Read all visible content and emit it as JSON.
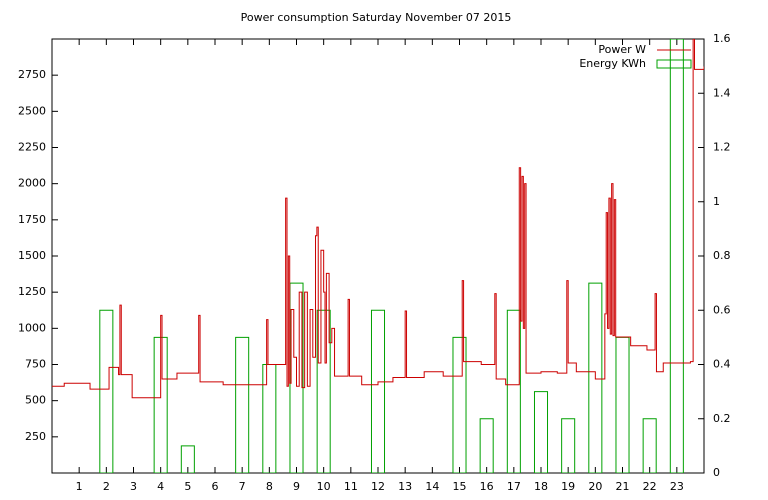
{
  "chart_data": {
    "type": "line",
    "title": "Power consumption Saturday November 07 2015",
    "xlim": [
      0,
      24
    ],
    "xticks": [
      1,
      2,
      3,
      4,
      5,
      6,
      7,
      8,
      9,
      10,
      11,
      12,
      13,
      14,
      15,
      16,
      17,
      18,
      19,
      20,
      21,
      22,
      23
    ],
    "ylim": [
      0,
      3000
    ],
    "yticks": [
      250,
      500,
      750,
      1000,
      1250,
      1500,
      1750,
      2000,
      2250,
      2500,
      2750
    ],
    "y2lim": [
      0,
      1.6
    ],
    "y2ticks": [
      0,
      0.2,
      0.4,
      0.6,
      0.8,
      1,
      1.2,
      1.4,
      1.6
    ],
    "legend": "top-right",
    "series": [
      {
        "name": "Power W",
        "color": "#cc0000",
        "kind": "line",
        "x": [
          0,
          0.45,
          1.4,
          2.1,
          2.45,
          2.5,
          2.55,
          2.95,
          3.5,
          4.0,
          4.05,
          4.6,
          5.4,
          5.45,
          6.3,
          7.5,
          7.9,
          7.95,
          8.6,
          8.65,
          8.7,
          8.75,
          8.8,
          8.9,
          9.0,
          9.1,
          9.2,
          9.3,
          9.4,
          9.5,
          9.6,
          9.7,
          9.75,
          9.8,
          9.9,
          10.0,
          10.05,
          10.1,
          10.2,
          10.3,
          10.4,
          10.9,
          10.95,
          11.4,
          12.0,
          12.55,
          13.0,
          13.05,
          13.7,
          14.4,
          15.1,
          15.15,
          15.8,
          16.3,
          16.35,
          16.7,
          17.2,
          17.25,
          17.3,
          17.35,
          17.4,
          17.45,
          18.0,
          18.6,
          18.95,
          19.0,
          19.3,
          20.0,
          20.35,
          20.4,
          20.45,
          20.5,
          20.55,
          20.6,
          20.65,
          20.7,
          20.75,
          21.3,
          21.9,
          22.2,
          22.25,
          22.5,
          23.5,
          23.6,
          23.65,
          24.0
        ],
        "values": [
          600,
          620,
          580,
          730,
          680,
          1160,
          680,
          520,
          520,
          1090,
          650,
          690,
          1090,
          630,
          610,
          610,
          1060,
          750,
          1900,
          600,
          1500,
          620,
          1130,
          800,
          600,
          1250,
          590,
          1250,
          600,
          1130,
          800,
          1640,
          1700,
          760,
          1540,
          1250,
          760,
          1380,
          900,
          1000,
          670,
          1200,
          670,
          610,
          630,
          660,
          1120,
          660,
          700,
          670,
          1330,
          770,
          750,
          1240,
          650,
          610,
          2110,
          1050,
          2050,
          1000,
          2000,
          690,
          700,
          690,
          1330,
          760,
          700,
          650,
          1100,
          1800,
          1000,
          1900,
          960,
          2000,
          950,
          1890,
          940,
          880,
          850,
          1240,
          700,
          760,
          770,
          3000,
          2790,
          2810
        ]
      },
      {
        "name": "Energy KWh",
        "color": "#00a000",
        "kind": "bar",
        "axis": "y2",
        "x": [
          0,
          1,
          2,
          3,
          4,
          5,
          6,
          7,
          8,
          9,
          10,
          11,
          12,
          13,
          14,
          15,
          16,
          17,
          18,
          19,
          20,
          21,
          22,
          23
        ],
        "values": [
          0,
          0,
          0.6,
          0,
          0.5,
          0.1,
          0,
          0.5,
          0.4,
          0.7,
          0.6,
          0,
          0.6,
          0,
          0,
          0.5,
          0.2,
          0.6,
          0.3,
          0.2,
          0.7,
          0.5,
          0.2,
          1.6
        ]
      }
    ]
  }
}
